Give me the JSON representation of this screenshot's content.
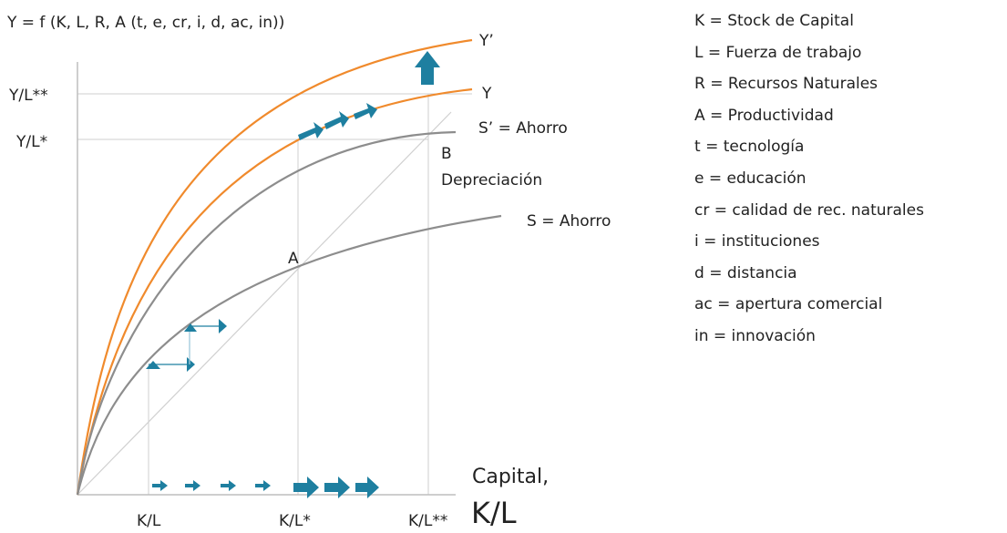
{
  "diagram": {
    "formula": "Y = f (K, L, R, A (t, e, cr, i, d, ac, in))",
    "curves": {
      "y_prime": "Y’",
      "y": "Y",
      "s_prime": "S’ = Ahorro",
      "depreciation": "Depreciación",
      "s": "S = Ahorro"
    },
    "points": {
      "a": "A",
      "b": "B"
    },
    "y_axis_ticks": {
      "high": "Y/L**",
      "low": "Y/L*"
    },
    "x_axis_ticks": {
      "k1": "K/L",
      "k2": "K/L*",
      "k3": "K/L**"
    },
    "x_axis_title": {
      "line1": "Capital,",
      "line2": "K/L"
    },
    "colors": {
      "output": "#f08a2c",
      "saving": "#8d8d8d",
      "arrow": "#1e7fa0",
      "grid": "#cfcfcf",
      "axis": "#bdbdbd"
    }
  },
  "legend": [
    "K = Stock de Capital",
    "L = Fuerza de trabajo",
    "R = Recursos Naturales",
    "A = Productividad",
    "t = tecnología",
    "e = educación",
    "cr = calidad de rec. naturales",
    "i = instituciones",
    "d = distancia",
    "ac = apertura comercial",
    "in = innovación"
  ]
}
